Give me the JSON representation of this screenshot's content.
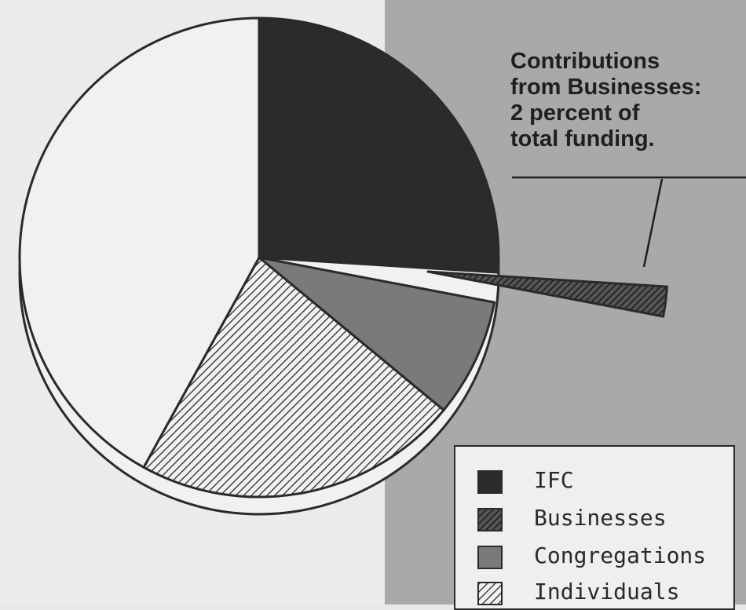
{
  "chart_data": {
    "type": "pie",
    "slices": [
      {
        "label": "IFC",
        "value": 26,
        "fill": "#2b2b2b"
      },
      {
        "label": "Businesses",
        "value": 2,
        "fill": "hatch-dark",
        "exploded": true
      },
      {
        "label": "Congregations",
        "value": 8,
        "fill": "#7a7a7a"
      },
      {
        "label": "Individuals",
        "value": 22,
        "fill": "hatch"
      },
      {
        "label": "",
        "value": 42,
        "fill": "#f2f1ef"
      }
    ],
    "annotations": [
      "Contributions",
      "from Businesses:",
      "2 percent of",
      "total funding."
    ],
    "legend": [
      {
        "label": "IFC",
        "swatch": "#2b2b2b"
      },
      {
        "label": "Businesses",
        "swatch": "hatch-dark"
      },
      {
        "label": "Congregations",
        "swatch": "#7a7a7a"
      },
      {
        "label": "Individuals",
        "swatch": "hatch"
      }
    ]
  }
}
